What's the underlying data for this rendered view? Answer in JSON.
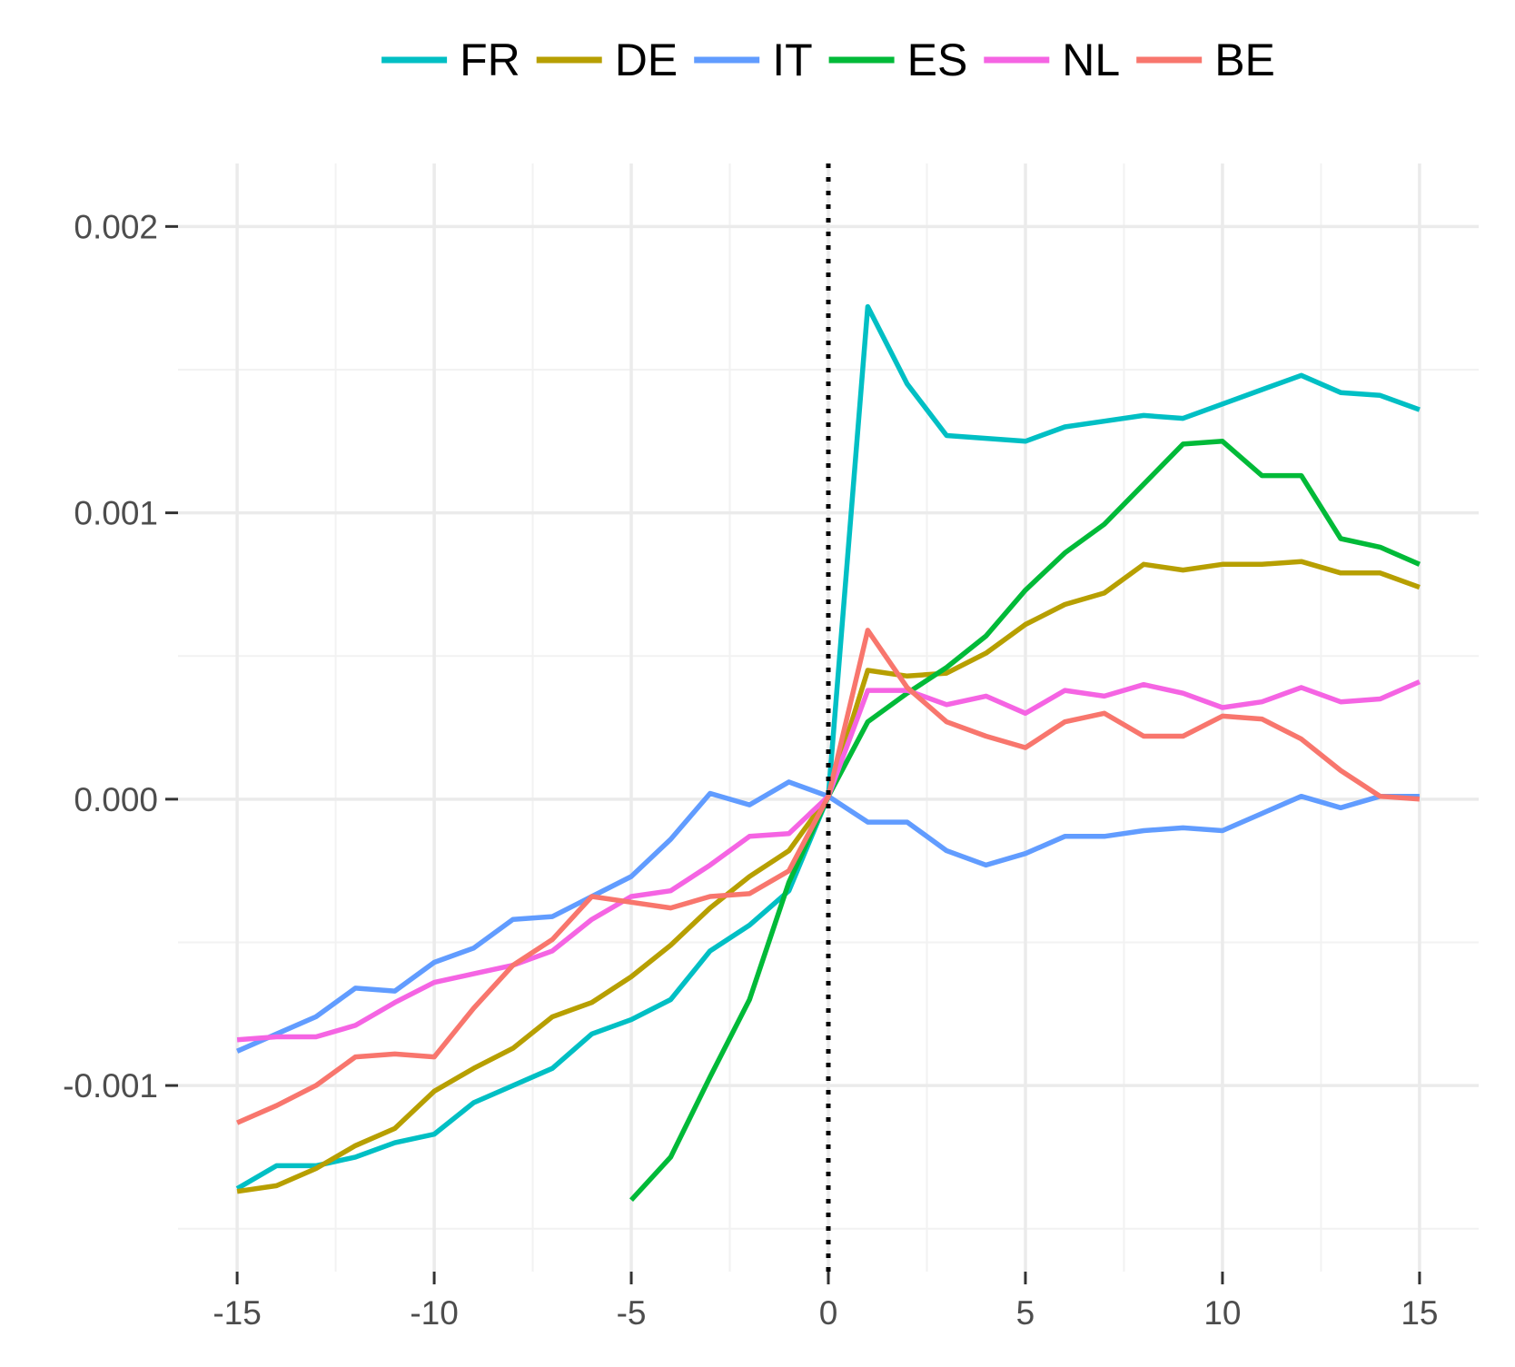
{
  "chart_data": {
    "type": "line",
    "title": "",
    "xlabel": "",
    "ylabel": "",
    "xlim": [
      -16.5,
      16.5
    ],
    "ylim": [
      -0.00165,
      0.00222
    ],
    "x_ticks": [
      -15,
      -10,
      -5,
      0,
      5,
      10,
      15
    ],
    "x_tick_labels": [
      "-15",
      "-10",
      "-5",
      "0",
      "5",
      "10",
      "15"
    ],
    "y_ticks": [
      -0.001,
      0.0,
      0.001,
      0.002
    ],
    "y_tick_labels": [
      "-0.001",
      "0.000",
      "0.001",
      "0.002"
    ],
    "grid": true,
    "legend_position": "top",
    "reference_line": {
      "x": 0,
      "style": "dotted",
      "color": "#000000"
    },
    "series": [
      {
        "name": "FR",
        "color": "#00BFC4",
        "x": [
          -15,
          -14,
          -13,
          -12,
          -11,
          -10,
          -9,
          -8,
          -7,
          -6,
          -5,
          -4,
          -3,
          -2,
          -1,
          0,
          1,
          2,
          3,
          4,
          5,
          6,
          7,
          8,
          9,
          10,
          11,
          12,
          13,
          14,
          15
        ],
        "y": [
          -0.00136,
          -0.00128,
          -0.00128,
          -0.00125,
          -0.0012,
          -0.00117,
          -0.00106,
          -0.001,
          -0.00094,
          -0.00082,
          -0.00077,
          -0.0007,
          -0.00053,
          -0.00044,
          -0.00032,
          1e-05,
          0.00172,
          0.00145,
          0.00127,
          0.00126,
          0.00125,
          0.0013,
          0.00132,
          0.00134,
          0.00133,
          0.00138,
          0.00143,
          0.00148,
          0.00142,
          0.00141,
          0.00136
        ]
      },
      {
        "name": "DE",
        "color": "#B79F00",
        "x": [
          -15,
          -14,
          -13,
          -12,
          -11,
          -10,
          -9,
          -8,
          -7,
          -6,
          -5,
          -4,
          -3,
          -2,
          -1,
          0,
          1,
          2,
          3,
          4,
          5,
          6,
          7,
          8,
          9,
          10,
          11,
          12,
          13,
          14,
          15
        ],
        "y": [
          -0.00137,
          -0.00135,
          -0.00129,
          -0.00121,
          -0.00115,
          -0.00102,
          -0.00094,
          -0.00087,
          -0.00076,
          -0.00071,
          -0.00062,
          -0.00051,
          -0.00038,
          -0.00027,
          -0.00018,
          1e-05,
          0.00045,
          0.00043,
          0.00044,
          0.00051,
          0.00061,
          0.00068,
          0.00072,
          0.00082,
          0.0008,
          0.00082,
          0.00082,
          0.00083,
          0.00079,
          0.00079,
          0.00074
        ]
      },
      {
        "name": "IT",
        "color": "#619CFF",
        "x": [
          -15,
          -14,
          -13,
          -12,
          -11,
          -10,
          -9,
          -8,
          -7,
          -6,
          -5,
          -4,
          -3,
          -2,
          -1,
          0,
          1,
          2,
          3,
          4,
          5,
          6,
          7,
          8,
          9,
          10,
          11,
          12,
          13,
          14,
          15
        ],
        "y": [
          -0.00088,
          -0.00082,
          -0.00076,
          -0.00066,
          -0.00067,
          -0.00057,
          -0.00052,
          -0.00042,
          -0.00041,
          -0.00034,
          -0.00027,
          -0.00014,
          2e-05,
          -2e-05,
          6e-05,
          1e-05,
          -8e-05,
          -8e-05,
          -0.00018,
          -0.00023,
          -0.00019,
          -0.00013,
          -0.00013,
          -0.00011,
          -0.0001,
          -0.00011,
          -5e-05,
          1e-05,
          -3e-05,
          1e-05,
          1e-05
        ]
      },
      {
        "name": "ES",
        "color": "#00BA38",
        "x": [
          -5,
          -4,
          -3,
          -2,
          -1,
          0,
          1,
          2,
          3,
          4,
          5,
          6,
          7,
          8,
          9,
          10,
          11,
          12,
          13,
          14,
          15
        ],
        "y": [
          -0.0014,
          -0.00125,
          -0.00097,
          -0.0007,
          -0.00029,
          1e-05,
          0.00027,
          0.00037,
          0.00046,
          0.00057,
          0.00073,
          0.00086,
          0.00096,
          0.0011,
          0.00124,
          0.00125,
          0.00113,
          0.00113,
          0.00091,
          0.00088,
          0.00082
        ]
      },
      {
        "name": "NL",
        "color": "#F564E3",
        "x": [
          -15,
          -14,
          -13,
          -12,
          -11,
          -10,
          -9,
          -8,
          -7,
          -6,
          -5,
          -4,
          -3,
          -2,
          -1,
          0,
          1,
          2,
          3,
          4,
          5,
          6,
          7,
          8,
          9,
          10,
          11,
          12,
          13,
          14,
          15
        ],
        "y": [
          -0.00084,
          -0.00083,
          -0.00083,
          -0.00079,
          -0.00071,
          -0.00064,
          -0.00061,
          -0.00058,
          -0.00053,
          -0.00042,
          -0.00034,
          -0.00032,
          -0.00023,
          -0.00013,
          -0.00012,
          1e-05,
          0.00038,
          0.00038,
          0.00033,
          0.00036,
          0.0003,
          0.00038,
          0.00036,
          0.0004,
          0.00037,
          0.00032,
          0.00034,
          0.00039,
          0.00034,
          0.00035,
          0.00041
        ]
      },
      {
        "name": "BE",
        "color": "#F8766D",
        "x": [
          -15,
          -14,
          -13,
          -12,
          -11,
          -10,
          -9,
          -8,
          -7,
          -6,
          -5,
          -4,
          -3,
          -2,
          -1,
          0,
          1,
          2,
          3,
          4,
          5,
          6,
          7,
          8,
          9,
          10,
          11,
          12,
          13,
          14,
          15
        ],
        "y": [
          -0.00113,
          -0.00107,
          -0.001,
          -0.0009,
          -0.00089,
          -0.0009,
          -0.00073,
          -0.00058,
          -0.00049,
          -0.00034,
          -0.00036,
          -0.00038,
          -0.00034,
          -0.00033,
          -0.00025,
          1e-05,
          0.00059,
          0.00039,
          0.00027,
          0.00022,
          0.00018,
          0.00027,
          0.0003,
          0.00022,
          0.00022,
          0.00029,
          0.00028,
          0.00021,
          0.0001,
          1e-05,
          0.0
        ]
      }
    ]
  }
}
